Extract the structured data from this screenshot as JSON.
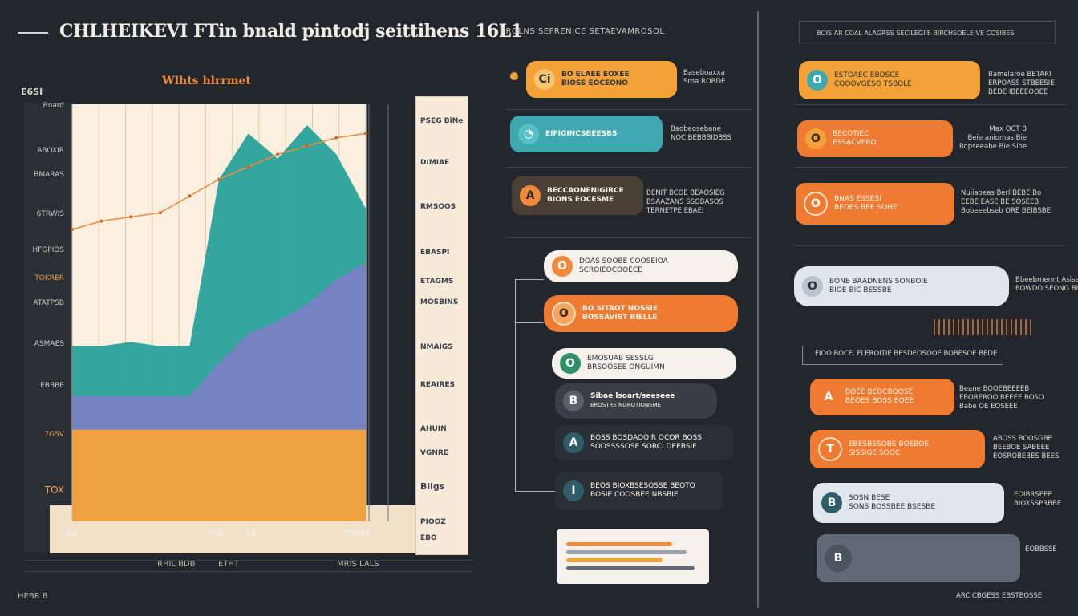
{
  "header": {
    "title": "CHLHEIKEVI FTin bnald pintodj seittihens 16L1",
    "subtitle": "PROLNS SEFRENICE SETAEVAMROSOL"
  },
  "right_header": "BOIS AR COAL ALAGRSS SECILEGIIE BIRCHSOELE VE COSIBES",
  "chart_data": {
    "type": "area",
    "title": "Wlhts hlrrmet",
    "corner_label": "E6SI",
    "y_labels": [
      "Board",
      "ABOXIR",
      "BMARAS",
      "6TRWIS",
      "HFGPIDS",
      "TOKRER",
      "ATATPSB",
      "ASMAES",
      "EBBBE",
      "7G5V",
      "TOX"
    ],
    "x_labels": [
      "A0",
      "28",
      "PID",
      "TWAS"
    ],
    "x": [
      0,
      1,
      2,
      3,
      4,
      5,
      6,
      7,
      8,
      9,
      10
    ],
    "series": [
      {
        "name": "Teal",
        "values": [
          42,
          42,
          43,
          42,
          42,
          82,
          93,
          87,
          95,
          88,
          75
        ]
      },
      {
        "name": "Indigo",
        "values": [
          30,
          30,
          30,
          30,
          30,
          38,
          45,
          48,
          52,
          58,
          62
        ]
      },
      {
        "name": "Amber",
        "values": [
          22,
          22,
          22,
          22,
          22,
          22,
          22,
          22,
          22,
          22,
          22
        ]
      },
      {
        "name": "Orange line",
        "values": [
          70,
          72,
          73,
          74,
          78,
          82,
          85,
          88,
          90,
          92,
          93
        ]
      }
    ],
    "ylim": [
      0,
      100
    ],
    "legend": [
      "PSEG BiNe",
      "DIMIAE",
      "RMSOOS",
      "EBASPI",
      "ETAGMS",
      "MOSBINS",
      "NMAIGS",
      "REAIRES",
      "AHUIN",
      "VGNRE",
      "PIOOZ",
      "Bilgs",
      "EBO"
    ]
  },
  "bottom": {
    "left": "HEBR B",
    "mid1": "RHIL BDB",
    "mid2": "ETHT",
    "mid3": "MRIS LALS"
  },
  "middle_pills": [
    {
      "icon": "Ci",
      "text": [
        "BO ELAEE EOXEE",
        "BIOSS EOCEONO"
      ],
      "side": [
        "Baseboaxxa",
        "Srna ROBDE"
      ]
    },
    {
      "icon": "",
      "text": [
        "EIFIGINCSBEESBS"
      ],
      "side": [
        "Baobeosebane",
        "NOC BEBBBIDBSS"
      ]
    },
    {
      "icon": "A",
      "text": [
        "BECCAONENIGIRCE",
        "BIONS EOCESME"
      ],
      "side": [
        "BENIT BCOE BEAOSIEG",
        "BSAAZANS SSOBASOS",
        "TERNETPE EBAEI"
      ]
    }
  ],
  "list_pills": [
    {
      "icon": "O",
      "text": [
        "DOAS SOOBE COOSEIOA",
        "SCROIEOCOOECE"
      ]
    },
    {
      "icon": "O",
      "text": [
        "BO SITAOT NOSSIE",
        "BOSSAVIST BIELLE"
      ]
    },
    {
      "icon": "O",
      "text": [
        "EMOSUAB SESSLG",
        "BRSOOSEE ONGUIMN"
      ]
    },
    {
      "icon": "B",
      "text": [
        "Sibae lsoart/seeseee",
        "EROSTRE NGROTIONEME"
      ]
    },
    {
      "icon": "A",
      "text": [
        "BOSS BOSDAOOIR OCOR BOSS",
        "SOOSSSSOSE SORCI DEEBSIE"
      ]
    },
    {
      "icon": "I",
      "text": [
        "BEOS BIOXBSESOSSE BEOTO",
        "BOSIE COOSBEE NBSBIE"
      ]
    }
  ],
  "right_pills": [
    {
      "icon": "O",
      "text": [
        "ESTOAEC EBDSCE",
        "COOOVGESO TSBOLE"
      ],
      "side": [
        "Bamelaroe BETARI",
        "ERPOASS STBEESIE",
        "BEDE IBEEEOOEE"
      ]
    },
    {
      "icon": "O",
      "text": [
        "BECOTIEC",
        "ESSACVERO"
      ],
      "side": [
        "Max OCT B",
        "Beie aniomas Bie",
        "Ropseeabe Bie Sibe"
      ]
    },
    {
      "icon": "O",
      "text": [
        "BNAS ESSESI",
        "BEDES BEE SOHE"
      ],
      "side": [
        "Nuiiaoeas Berl BEBE Bo",
        "EEBE EASE BE SOSEEB",
        "Bobeeebseb ORE BEIBSBE"
      ]
    },
    {
      "icon": "O",
      "text": [
        "BONE BAADNENS SONBOIE",
        "BIOE BIC BESSBE"
      ],
      "side": [
        "Bbeebmennt Asise",
        "BOWDO SEONG BISE"
      ]
    }
  ],
  "right_divider_text": "FIOO BOCE. FLEROITIE BESDEOSOOE BOBESOE BEDE",
  "right_pills_lower": [
    {
      "icon": "A",
      "text": [
        "BOEE BEOCBOOSE",
        "BEOES BOSS BOEE"
      ],
      "side": [
        "Beane BOOEBEEEEB",
        "EBOREROO BEEEE BOSO",
        "Babe OE EOSEEE"
      ]
    },
    {
      "icon": "T",
      "text": [
        "EBESBESOBS BOEBOE",
        "SISSIGE SOOC"
      ],
      "side": [
        "ABOSS BOOSGBE",
        "BEEBOE SABEEE",
        "EOSROBEBES BEES"
      ]
    },
    {
      "icon": "B",
      "text": [
        "SOSN BESE",
        "SONS BOSSBEE BSESBE"
      ],
      "side": [
        "EOIBRSEEE",
        "BIOXSSPRBBE"
      ]
    },
    {
      "icon": "B",
      "text": [
        "",
        ""
      ],
      "side": [
        "EOBBSSE"
      ]
    }
  ],
  "footer_right": "ARC CBGESS EBSTBOSSE"
}
